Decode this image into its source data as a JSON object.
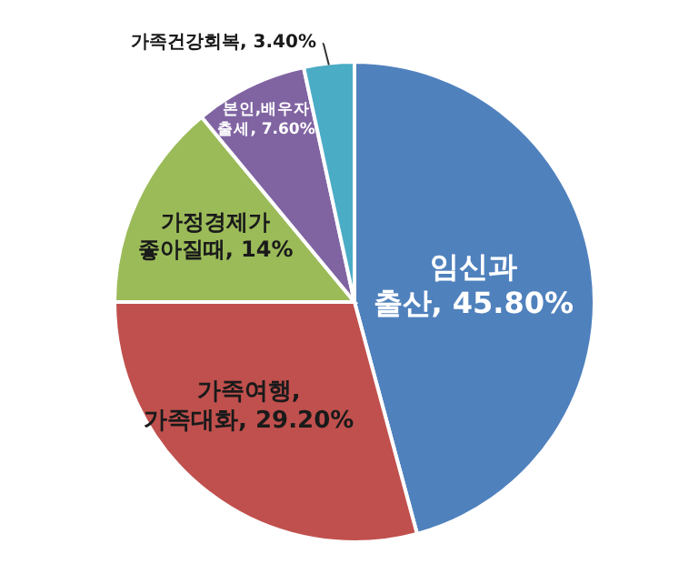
{
  "chart_data": {
    "type": "pie",
    "categories": [
      "임신과 출산",
      "가족여행, 가족대화",
      "가정경제가 좋아질때",
      "본인,배우자 출세",
      "가족건강회복"
    ],
    "values": [
      45.8,
      29.2,
      14,
      7.6,
      3.4
    ],
    "value_labels": [
      "45.80%",
      "29.20%",
      "14%",
      "7.60%",
      "3.40%"
    ],
    "colors": [
      "#4f81bd",
      "#c0504d",
      "#9bbb59",
      "#8064a2",
      "#4bacc6"
    ],
    "legend": false
  }
}
